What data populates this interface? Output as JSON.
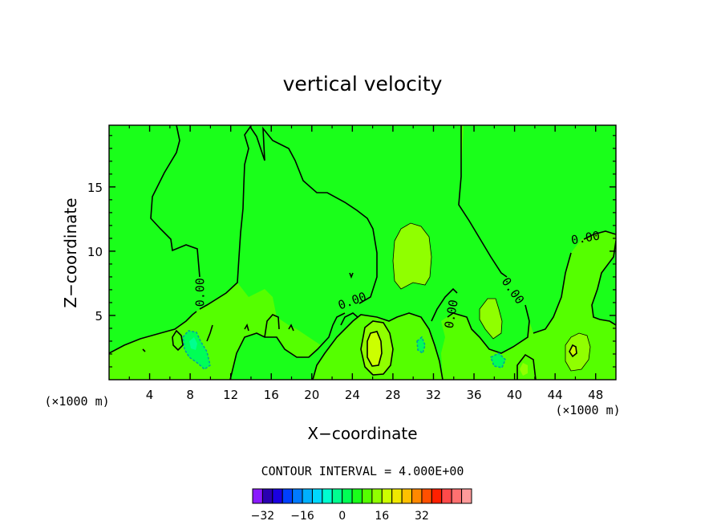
{
  "chart_data": {
    "type": "contour",
    "title": "vertical velocity",
    "xlabel": "X−coordinate",
    "ylabel": "Z−coordinate",
    "x_unit_left": "(×1000 m)",
    "x_unit_right": "(×1000 m)",
    "xlim": [
      0,
      50
    ],
    "ylim": [
      0,
      19.8
    ],
    "x_ticks": [
      4,
      8,
      12,
      16,
      20,
      24,
      28,
      32,
      36,
      40,
      44,
      48
    ],
    "y_ticks": [
      5,
      10,
      15
    ],
    "grid": false,
    "contour_interval_text": "CONTOUR INTERVAL = 4.000E+00",
    "contour_labels": [
      {
        "text": "0.00",
        "x": 9.0,
        "y": 6.8,
        "angle": -90
      },
      {
        "text": "0.00",
        "x": 24.0,
        "y": 6.1,
        "angle": -20
      },
      {
        "text": "0.00",
        "x": 33.8,
        "y": 5.1,
        "angle": -80
      },
      {
        "text": "0.00",
        "x": 39.8,
        "y": 6.9,
        "angle": 55
      },
      {
        "text": "0.00",
        "x": 47.0,
        "y": 11.0,
        "angle": -10
      }
    ],
    "colorbar": {
      "min": -36,
      "max": 36,
      "step": 4,
      "tick_labels": [
        "−32",
        "−16",
        "0",
        "16",
        "32"
      ],
      "tick_values": [
        -32,
        -16,
        0,
        16,
        32
      ],
      "colors": [
        "#8a1aff",
        "#2a00b0",
        "#1a00e0",
        "#0040ff",
        "#007aff",
        "#00b0ff",
        "#00d8ff",
        "#00ffd0",
        "#00ff90",
        "#00ff55",
        "#1aff1a",
        "#55ff00",
        "#90ff00",
        "#ccff00",
        "#f0e800",
        "#ffc000",
        "#ff8800",
        "#ff5000",
        "#ff2000",
        "#ff4a4a",
        "#ff7070",
        "#ff9a9a"
      ]
    },
    "field_colors": {
      "background": "#1aff1a",
      "positive_4_8": "#55ff00",
      "positive_8_12": "#90ff00",
      "positive_12_16": "#ccff00",
      "negative": "#00ff55",
      "negative_strong": "#00ff90",
      "contour_line": "#000000"
    }
  }
}
